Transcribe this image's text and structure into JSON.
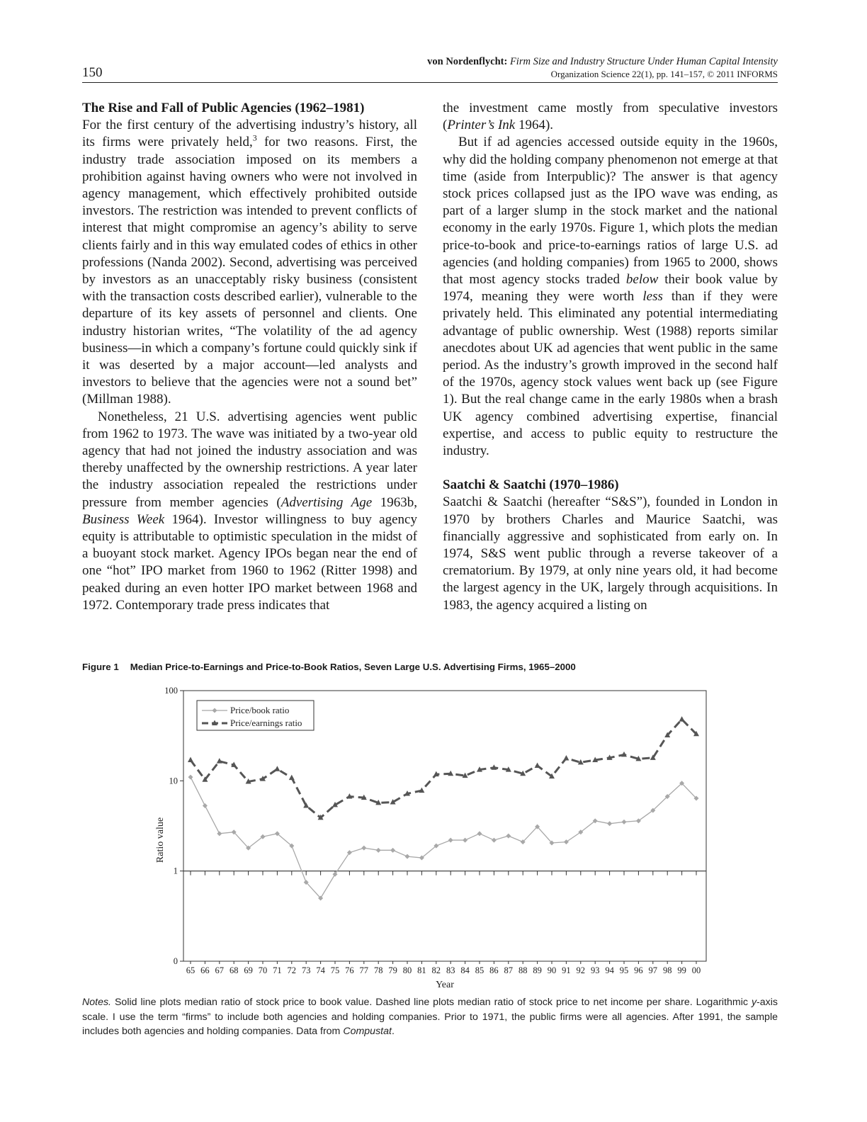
{
  "header": {
    "page_number": "150",
    "author": "von Nordenflycht:",
    "title": "Firm Size and Industry Structure Under Human Capital Intensity",
    "citation": "Organization Science 22(1), pp. 141–157, © 2011 INFORMS"
  },
  "left_column": {
    "section_title": "The Rise and Fall of Public Agencies (1962–1981)",
    "para1_a": "For the first century of the advertising industry’s history, all its firms were privately held,",
    "para1_sup": "3",
    "para1_b": " for two reasons. First, the industry trade association imposed on its members a prohibition against having owners who were not involved in agency management, which effectively prohibited outside investors. The restriction was intended to prevent conflicts of interest that might compromise an agency’s ability to serve clients fairly and in this way emulated codes of ethics in other professions (Nanda 2002). Second, advertising was perceived by investors as an unacceptably risky business (consistent with the transaction costs described earlier), vulnerable to the departure of its key assets of personnel and clients. One industry historian writes, “The volatility of the ad agency business—in which a company’s fortune could quickly sink if it was deserted by a major account—led analysts and investors to believe that the agencies were not a sound bet” (Millman 1988).",
    "para2_a": "Nonetheless, 21 U.S. advertising agencies went public from 1962 to 1973. The wave was initiated by a two-year old agency that had not joined the industry association and was thereby unaffected by the ownership restrictions. A year later the industry association repealed the restrictions under pressure from member agencies (",
    "para2_i1": "Advertising Age",
    "para2_b": " 1963b, ",
    "para2_i2": "Business Week",
    "para2_c": " 1964). Investor willingness to buy agency equity is attributable to optimistic speculation in the midst of a buoyant stock market. Agency IPOs began near the end of one “hot” IPO market from 1960 to 1962 (Ritter 1998) and peaked during an even hotter IPO market between 1968 and 1972. Contemporary trade press indicates that"
  },
  "right_column": {
    "para0_a": "the investment came mostly from speculative investors (",
    "para0_i": "Printer’s Ink",
    "para0_b": " 1964).",
    "para1_a": "But if ad agencies accessed outside equity in the 1960s, why did the holding company phenomenon not emerge at that time (aside from Interpublic)? The answer is that agency stock prices collapsed just as the IPO wave was ending, as part of a larger slump in the stock market and the national economy in the early 1970s. Figure 1, which plots the median price-to-book and price-to-earnings ratios of large U.S. ad agencies (and holding companies) from 1965 to 2000, shows that most agency stocks traded ",
    "para1_i1": "below",
    "para1_b": " their book value by 1974, meaning they were worth ",
    "para1_i2": "less",
    "para1_c": " than if they were privately held. This eliminated any potential intermediating advantage of public ownership. West (1988) reports similar anecdotes about UK ad agencies that went public in the same period. As the industry’s growth improved in the second half of the 1970s, agency stock values went back up (see Figure 1). But the real change came in the early 1980s when a brash UK agency combined advertising expertise, financial expertise, and access to public equity to restructure the industry.",
    "section_title": "Saatchi & Saatchi (1970–1986)",
    "para2": "Saatchi & Saatchi (hereafter “S&S”), founded in London in 1970 by brothers Charles and Maurice Saatchi, was financially aggressive and sophisticated from early on. In 1974, S&S went public through a reverse takeover of a crematorium. By 1979, at only nine years old, it had become the largest agency in the UK, largely through acquisitions. In 1983, the agency acquired a listing on"
  },
  "figure": {
    "label": "Figure 1",
    "caption": "Median Price-to-Earnings and Price-to-Book Ratios, Seven Large U.S. Advertising Firms, 1965–2000",
    "notes_label": "Notes.",
    "notes_a": " Solid line plots median ratio of stock price to book value. Dashed line plots median ratio of stock price to net income per share. Logarithmic ",
    "notes_y": "y",
    "notes_b": "-axis scale. I use the term “firms” to include both agencies and holding companies. Prior to 1971, the public firms were all agencies. After 1991, the sample includes both agencies and holding companies. Data from ",
    "notes_src": "Compustat",
    "notes_end": "."
  },
  "chart_data": {
    "type": "line",
    "title": "",
    "xlabel": "Year",
    "ylabel": "Ratio value",
    "y_scale": "log",
    "ylim": [
      0.1,
      100
    ],
    "y_ticks": [
      0.1,
      1,
      10,
      100
    ],
    "y_tick_labels": [
      "0",
      "1",
      "10",
      "100"
    ],
    "grid": false,
    "legend_position": "top-left",
    "categories": [
      "65",
      "66",
      "67",
      "68",
      "69",
      "70",
      "71",
      "72",
      "73",
      "74",
      "75",
      "76",
      "77",
      "78",
      "79",
      "80",
      "81",
      "82",
      "83",
      "84",
      "85",
      "86",
      "87",
      "88",
      "89",
      "90",
      "91",
      "92",
      "93",
      "94",
      "95",
      "96",
      "97",
      "98",
      "99",
      "00"
    ],
    "series": [
      {
        "name": "Price/book ratio",
        "style": "solid",
        "color": "#a8a8a8",
        "marker": "diamond",
        "values": [
          11,
          5.3,
          2.6,
          2.7,
          1.8,
          2.4,
          2.6,
          1.9,
          0.75,
          0.5,
          0.92,
          1.6,
          1.8,
          1.7,
          1.7,
          1.45,
          1.4,
          1.9,
          2.2,
          2.2,
          2.6,
          2.2,
          2.45,
          2.1,
          3.1,
          2.05,
          2.1,
          2.7,
          3.6,
          3.35,
          3.5,
          3.6,
          4.7,
          6.7,
          9.4,
          6.4
        ]
      },
      {
        "name": "Price/earnings ratio",
        "style": "dashed",
        "color": "#555555",
        "marker": "triangle",
        "values": [
          17,
          10.3,
          16.5,
          15,
          9.8,
          10.5,
          13.5,
          10.8,
          5.3,
          3.9,
          5.4,
          6.7,
          6.5,
          5.7,
          5.8,
          7.2,
          7.8,
          11.8,
          12,
          11.4,
          13.3,
          14,
          13.3,
          12,
          14.7,
          11.2,
          17.8,
          16,
          17,
          18,
          19.5,
          17.5,
          18,
          32,
          48,
          33
        ]
      }
    ]
  }
}
